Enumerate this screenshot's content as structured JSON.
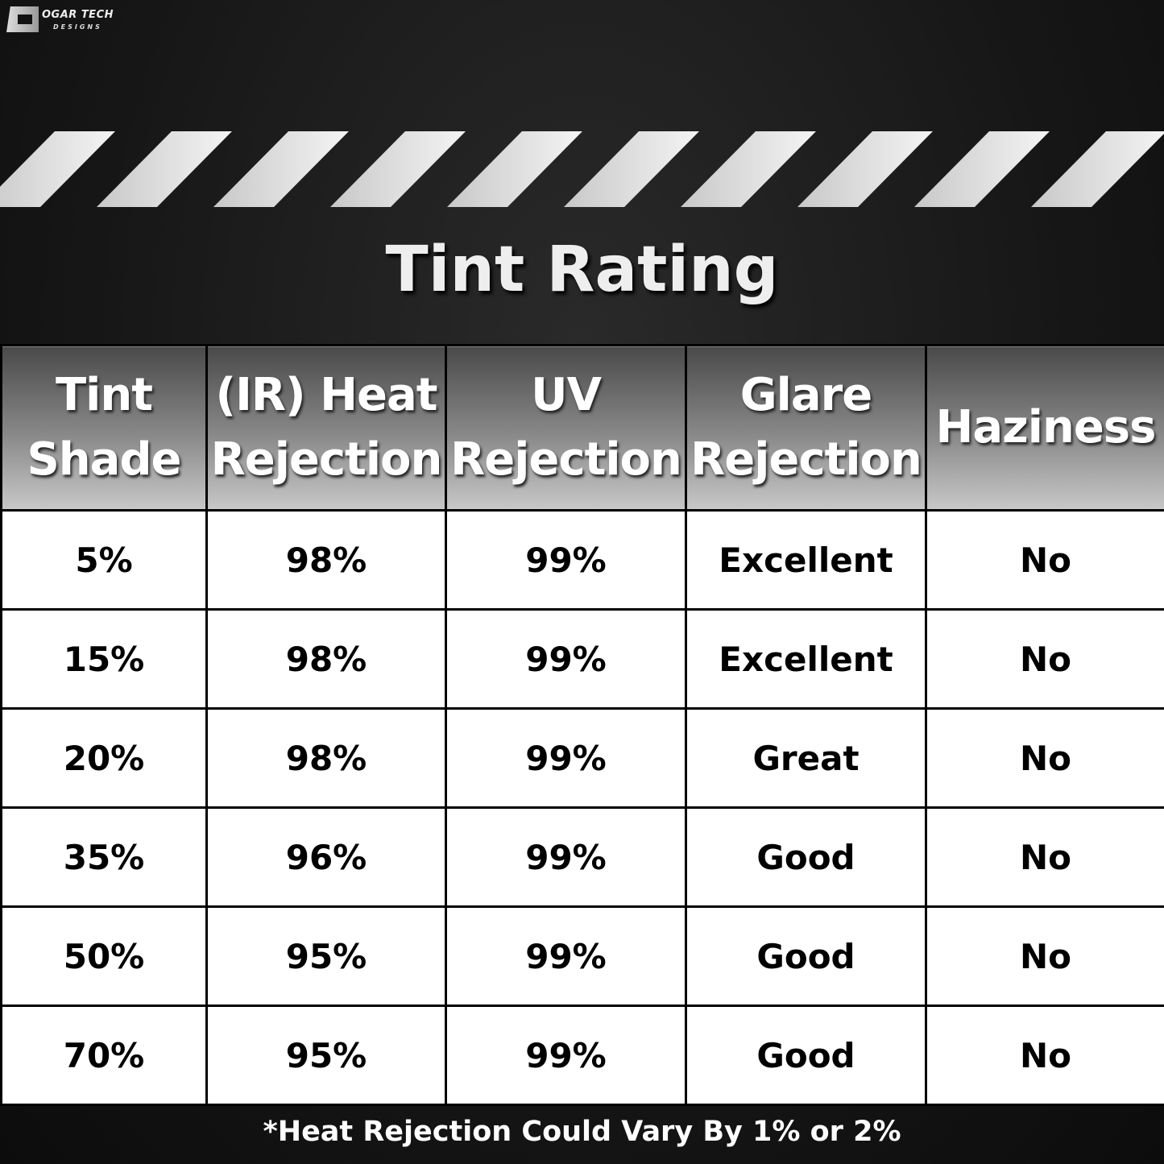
{
  "logo": {
    "text_line1": "OGAR TECH",
    "text_line2": "DESIGNS"
  },
  "title": "Tint Rating",
  "table": {
    "headers": [
      [
        "Tint",
        "Shade"
      ],
      [
        "(IR) Heat",
        "Rejection"
      ],
      [
        "UV",
        "Rejection"
      ],
      [
        "Glare",
        "Rejection"
      ],
      [
        "Haziness"
      ]
    ],
    "rows": [
      [
        "5%",
        "98%",
        "99%",
        "Excellent",
        "No"
      ],
      [
        "15%",
        "98%",
        "99%",
        "Excellent",
        "No"
      ],
      [
        "20%",
        "98%",
        "99%",
        "Great",
        "No"
      ],
      [
        "35%",
        "96%",
        "99%",
        "Good",
        "No"
      ],
      [
        "50%",
        "95%",
        "99%",
        "Good",
        "No"
      ],
      [
        "70%",
        "95%",
        "99%",
        "Good",
        "No"
      ]
    ]
  },
  "footnote": "*Heat Rejection Could Vary By 1% or 2%"
}
